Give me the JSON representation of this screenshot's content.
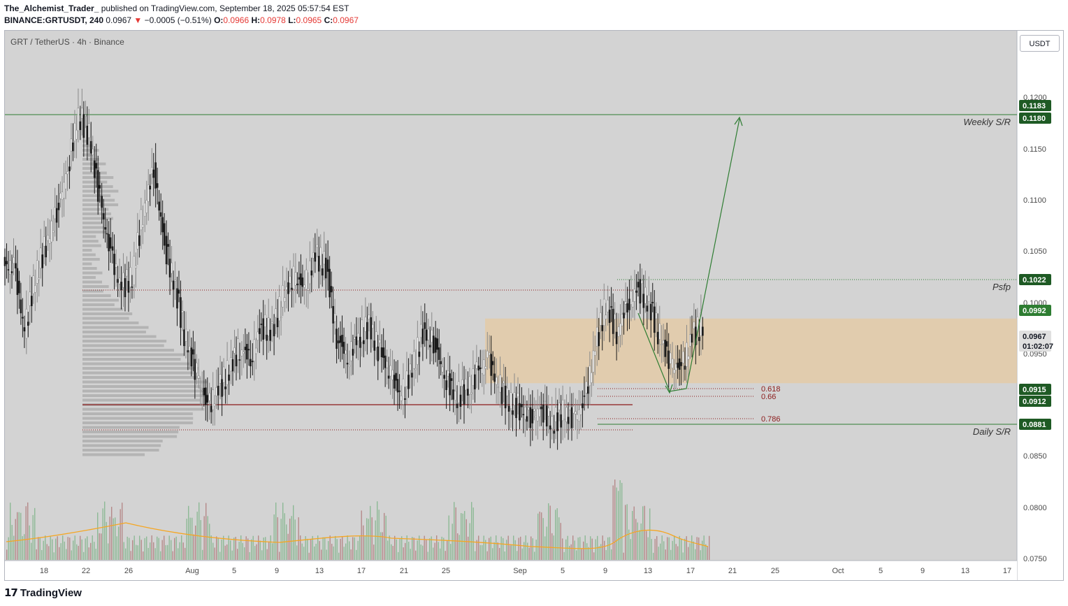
{
  "header": {
    "author": "The_Alchemist_Trader_",
    "published": "published on TradingView.com, September 18, 2025 05:57:54 EST",
    "symbol": "BINANCE:GRTUSDT, 240",
    "last": "0.0967",
    "change_arrow": "▼",
    "change": "−0.0005 (−0.51%)",
    "o_label": "O:",
    "o_value": "0.0966",
    "h_label": "H:",
    "h_value": "0.0978",
    "l_label": "L:",
    "l_value": "0.0965",
    "c_label": "C:",
    "c_value": "0.0967"
  },
  "pane_title": "GRT / TetherUS · 4h · Binance",
  "unit_button": "USDT",
  "footer": {
    "brand": "TradingView",
    "logo_icon": "tradingview-logo-icon"
  },
  "colors": {
    "background": "#d3d3d3",
    "candle": "#1a1a1a",
    "candle_up_light": "#8a8a8a",
    "level_green": "#2e7d32",
    "level_dark_red": "#8b1a1a",
    "zone_fill": "#e6c9a2",
    "volume_green": "#6fae7a",
    "volume_red": "#a86a6a",
    "volume_ma": "#f5a623",
    "price_label_dark": "#2a2e39"
  },
  "chart_data": {
    "type": "candlestick",
    "title": "GRT / TetherUS · 4h · Binance",
    "ylim": [
      0.075,
      0.123
    ],
    "y_ticks": [
      "0.1200",
      "0.1150",
      "0.1100",
      "0.1050",
      "0.1000",
      "0.0950",
      "0.0850",
      "0.0800",
      "0.0750"
    ],
    "x_ticks": [
      "18",
      "22",
      "26",
      "Aug",
      "5",
      "9",
      "13",
      "17",
      "21",
      "25",
      "Sep",
      "5",
      "9",
      "13",
      "17",
      "21",
      "25",
      "Oct",
      "5",
      "9",
      "13",
      "17"
    ],
    "x_range": [
      "2025-07-16",
      "2025-10-18"
    ],
    "price_series": {
      "dates": [
        "2025-07-16",
        "2025-07-17",
        "2025-07-18",
        "2025-07-19",
        "2025-07-20",
        "2025-07-21",
        "2025-07-22",
        "2025-07-23",
        "2025-07-24",
        "2025-07-25",
        "2025-07-26",
        "2025-07-27",
        "2025-07-28",
        "2025-07-29",
        "2025-07-30",
        "2025-07-31",
        "2025-08-01",
        "2025-08-02",
        "2025-08-03",
        "2025-08-04",
        "2025-08-05",
        "2025-08-06",
        "2025-08-07",
        "2025-08-08",
        "2025-08-09",
        "2025-08-10",
        "2025-08-11",
        "2025-08-12",
        "2025-08-13",
        "2025-08-14",
        "2025-08-15",
        "2025-08-16",
        "2025-08-17",
        "2025-08-18",
        "2025-08-19",
        "2025-08-20",
        "2025-08-21",
        "2025-08-22",
        "2025-08-23",
        "2025-08-24",
        "2025-08-25",
        "2025-08-26",
        "2025-08-27",
        "2025-08-28",
        "2025-08-29",
        "2025-08-30",
        "2025-08-31",
        "2025-09-01",
        "2025-09-02",
        "2025-09-03",
        "2025-09-04",
        "2025-09-05",
        "2025-09-06",
        "2025-09-07",
        "2025-09-08",
        "2025-09-09",
        "2025-09-10",
        "2025-09-11",
        "2025-09-12",
        "2025-09-13",
        "2025-09-14",
        "2025-09-15",
        "2025-09-16",
        "2025-09-17",
        "2025-09-18"
      ],
      "close": [
        0.102,
        0.096,
        0.101,
        0.104,
        0.107,
        0.111,
        0.116,
        0.114,
        0.108,
        0.103,
        0.1,
        0.101,
        0.107,
        0.111,
        0.104,
        0.1,
        0.095,
        0.092,
        0.089,
        0.0905,
        0.0925,
        0.0945,
        0.0935,
        0.0965,
        0.096,
        0.099,
        0.101,
        0.1,
        0.103,
        0.102,
        0.0955,
        0.0935,
        0.0955,
        0.0965,
        0.094,
        0.092,
        0.09,
        0.0925,
        0.096,
        0.095,
        0.092,
        0.09,
        0.0905,
        0.092,
        0.0935,
        0.091,
        0.0895,
        0.089,
        0.088,
        0.089,
        0.0875,
        0.0885,
        0.088,
        0.0895,
        0.0945,
        0.0985,
        0.096,
        0.0985,
        0.1,
        0.0985,
        0.0955,
        0.093,
        0.0925,
        0.0955,
        0.0967
      ]
    },
    "levels": [
      {
        "label": "Weekly S/R",
        "price": 0.1183,
        "price2": 0.118
      },
      {
        "label": "Psfp",
        "price": 0.1022
      },
      {
        "label": "Daily S/R",
        "price": 0.0881
      }
    ],
    "zone": {
      "top": 0.0967,
      "bottom": 0.0912
    },
    "fib_levels": [
      {
        "label": "0.618",
        "price": 0.0918
      },
      {
        "label": "0.66",
        "price": 0.091
      },
      {
        "label": "0.786",
        "price": 0.0886
      }
    ],
    "price_labels": [
      "0.1183",
      "0.1180",
      "0.1022",
      "0.0992",
      "0.0967",
      "01:02:07",
      "0.0915",
      "0.0912",
      "0.0881"
    ],
    "projection": {
      "points": [
        [
          "2025-09-11",
          0.099
        ],
        [
          "2025-09-15",
          0.0916
        ],
        [
          "2025-09-16",
          0.0916
        ],
        [
          "2025-09-22",
          0.118
        ]
      ]
    },
    "volume_profile": "left-side horizontal histogram",
    "volume": "bottom histogram with moving average"
  }
}
